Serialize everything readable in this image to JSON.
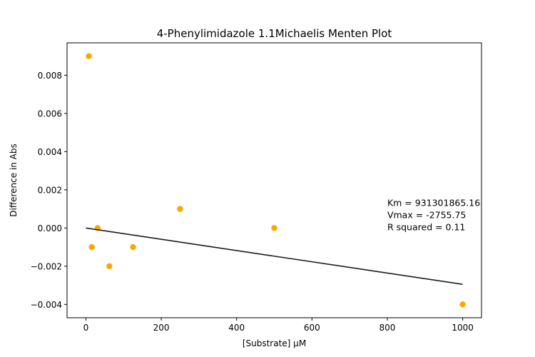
{
  "chart_data": {
    "type": "scatter",
    "title": "4-Phenylimidazole 1.1Michaelis Menten Plot",
    "xlabel": "[Substrate] µM",
    "ylabel": "Difference in Abs",
    "xlim": [
      -50,
      1050
    ],
    "ylim": [
      -0.0047,
      0.0097
    ],
    "xticks": [
      0,
      200,
      400,
      600,
      800,
      1000
    ],
    "xtick_labels": [
      "0",
      "200",
      "400",
      "600",
      "800",
      "1000"
    ],
    "yticks": [
      -0.004,
      -0.002,
      0.0,
      0.002,
      0.004,
      0.006,
      0.008
    ],
    "ytick_labels": [
      "−0.004",
      "−0.002",
      "0.000",
      "0.002",
      "0.004",
      "0.006",
      "0.008"
    ],
    "grid": false,
    "series": [
      {
        "kind": "points",
        "color": "#FFA500",
        "x": [
          7.8125,
          15.625,
          31.25,
          62.5,
          125,
          250,
          500,
          1000
        ],
        "y": [
          0.009,
          -0.001,
          0.0,
          -0.002,
          -0.001,
          0.001,
          0.0,
          -0.004
        ]
      },
      {
        "kind": "fit-line",
        "color": "#1a1a1a",
        "x": [
          0,
          1000
        ],
        "y": [
          0.0,
          -0.00295
        ]
      }
    ],
    "annotation": {
      "lines": [
        "Km = 931301865.16",
        "Vmax = -2755.75",
        "R squared = 0.11"
      ],
      "x": 800,
      "y_top": 0.00115
    }
  }
}
